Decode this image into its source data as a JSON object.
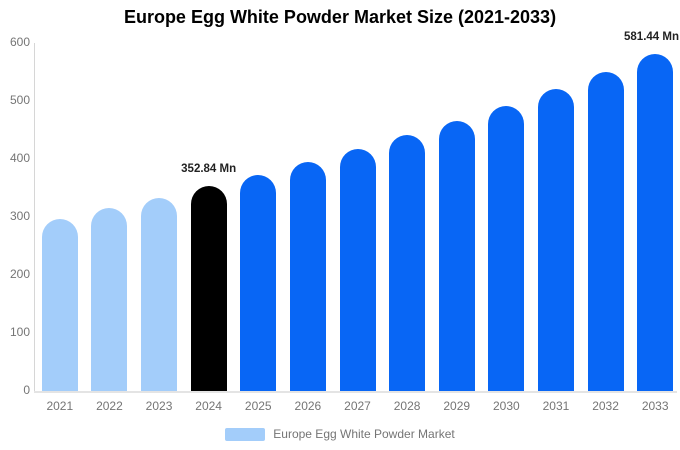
{
  "chart_data": {
    "type": "bar",
    "title": "Europe Egg White Powder Market Size (2021-2033)",
    "unit": "Mn",
    "categories": [
      "2021",
      "2022",
      "2023",
      "2024",
      "2025",
      "2026",
      "2027",
      "2028",
      "2029",
      "2030",
      "2031",
      "2032",
      "2033"
    ],
    "values": [
      297,
      315,
      333,
      352.84,
      373,
      394,
      417,
      441,
      466,
      492,
      520,
      550,
      581.44
    ],
    "bar_roles": [
      "historical",
      "historical",
      "historical",
      "highlight",
      "forecast",
      "forecast",
      "forecast",
      "forecast",
      "forecast",
      "forecast",
      "forecast",
      "forecast",
      "forecast"
    ],
    "colors": {
      "historical": "#a3cdfa",
      "highlight": "#000000",
      "forecast": "#0866f5"
    },
    "axis_text_color": "#757575",
    "ylim": [
      0,
      600
    ],
    "yticks": [
      0,
      100,
      200,
      300,
      400,
      500,
      600
    ],
    "grid": "off",
    "annotations": [
      {
        "category": "2024",
        "text": "352.84 Mn"
      },
      {
        "category": "2033",
        "text": "581.44 Mn"
      }
    ],
    "legend": {
      "position": "bottom",
      "label": "Europe Egg White Powder Market",
      "swatch_color": "#a3cdfa"
    }
  }
}
